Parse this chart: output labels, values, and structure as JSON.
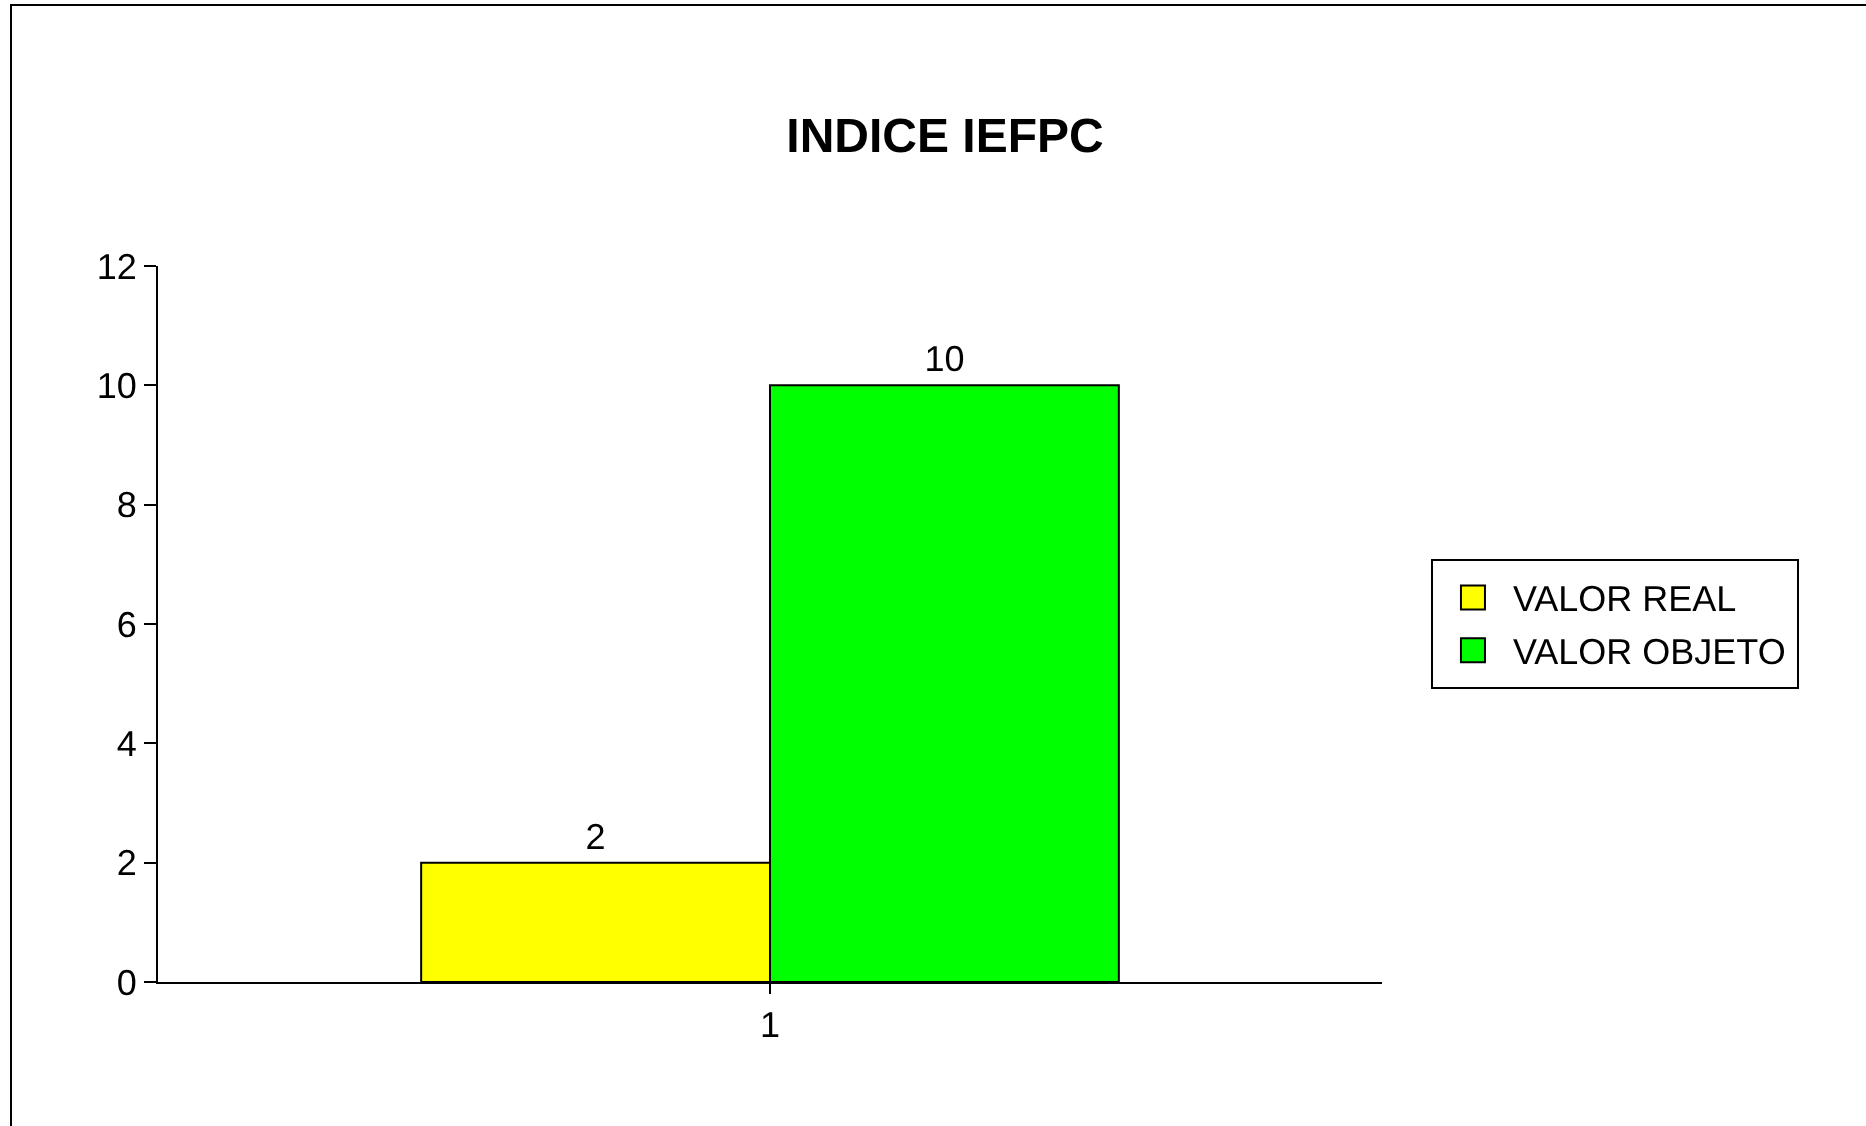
{
  "chart_data": {
    "type": "bar",
    "title": "INDICE IEFPC",
    "categories": [
      "1"
    ],
    "series": [
      {
        "name": "VALOR REAL",
        "color": "#ffff00",
        "values": [
          2
        ]
      },
      {
        "name": "VALOR OBJETO",
        "color": "#00ff00",
        "values": [
          10
        ]
      }
    ],
    "ylim": [
      0,
      12
    ],
    "yticks": [
      0,
      2,
      4,
      6,
      8,
      10,
      12
    ],
    "data_labels": true,
    "legend": "right"
  }
}
